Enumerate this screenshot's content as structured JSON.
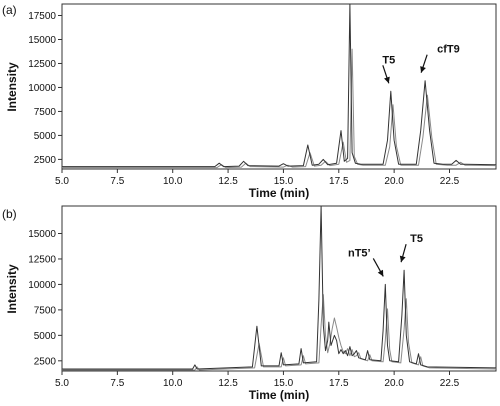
{
  "chart_data": [
    {
      "type": "line",
      "panel_label": "(a)",
      "xlabel": "Time (min)",
      "ylabel": "Intensity",
      "xlim": [
        5.0,
        24.6
      ],
      "ylim": [
        1500,
        18700
      ],
      "xticks": [
        5.0,
        7.5,
        10.0,
        12.5,
        15.0,
        17.5,
        20.0,
        22.5
      ],
      "xtick_labels": [
        "5.0",
        "7.5",
        "10.0",
        "12.5",
        "15.0",
        "17.5",
        "20.0",
        "22.5"
      ],
      "yticks": [
        2500,
        5000,
        7500,
        10000,
        12500,
        15000,
        17500
      ],
      "ytick_labels": [
        "2500",
        "5000",
        "7500",
        "10000",
        "12500",
        "15000",
        "17500"
      ],
      "grid": false,
      "colors": {
        "trace_1": "#333333",
        "trace_2": "#8a8a8a"
      },
      "series": [
        {
          "x": [
            5.0,
            11.9,
            12.1,
            12.3,
            13.0,
            13.2,
            13.4,
            14.8,
            15.0,
            15.2,
            15.9,
            16.1,
            16.3,
            16.6,
            16.8,
            17.0,
            17.4,
            17.6,
            17.75,
            17.9,
            18.0,
            18.1,
            18.25,
            18.5,
            19.5,
            19.7,
            19.85,
            20.0,
            20.2,
            21.0,
            21.2,
            21.4,
            21.6,
            21.8,
            22.2,
            22.6,
            22.8,
            23.0,
            23.2,
            24.6
          ],
          "y": [
            1750,
            1750,
            2100,
            1750,
            1800,
            2300,
            1850,
            1800,
            2050,
            1800,
            1850,
            4000,
            1900,
            2000,
            2500,
            1950,
            2100,
            5500,
            2300,
            2600,
            18700,
            3200,
            2100,
            2000,
            2000,
            4500,
            9600,
            4500,
            2000,
            2000,
            5500,
            10700,
            5500,
            2100,
            2000,
            2000,
            2400,
            2000,
            2000,
            1950
          ]
        },
        {
          "x": [
            5.0,
            12.0,
            12.2,
            12.4,
            13.1,
            13.3,
            13.5,
            15.0,
            15.2,
            15.4,
            16.0,
            16.2,
            16.4,
            16.7,
            16.9,
            17.1,
            17.5,
            17.7,
            17.85,
            18.0,
            18.1,
            18.2,
            18.35,
            18.6,
            19.6,
            19.8,
            19.95,
            20.1,
            20.3,
            21.1,
            21.3,
            21.5,
            21.7,
            21.9,
            22.4,
            22.8,
            23.0,
            23.2,
            23.4,
            24.6
          ],
          "y": [
            1650,
            1650,
            1950,
            1650,
            1700,
            2100,
            1750,
            1700,
            1900,
            1700,
            1750,
            3200,
            1800,
            1900,
            2300,
            1850,
            2000,
            4300,
            2200,
            2400,
            14000,
            2800,
            2000,
            1900,
            1900,
            3800,
            8200,
            3900,
            1900,
            1900,
            4800,
            9200,
            4800,
            2000,
            1900,
            1900,
            2200,
            1900,
            1900,
            1850
          ]
        }
      ],
      "annotations": [
        {
          "text": "T5",
          "x": 19.85,
          "y": 9600
        },
        {
          "text": "cfT9",
          "x": 21.4,
          "y": 10700
        }
      ]
    },
    {
      "type": "line",
      "panel_label": "(b)",
      "xlabel": "Time (min)",
      "ylabel": "Intensity",
      "xlim": [
        5.0,
        24.6
      ],
      "ylim": [
        1500,
        17700
      ],
      "xticks": [
        5.0,
        7.5,
        10.0,
        12.5,
        15.0,
        17.5,
        20.0,
        22.5
      ],
      "xtick_labels": [
        "5.0",
        "7.5",
        "10.0",
        "12.5",
        "15.0",
        "17.5",
        "20.0",
        "22.5"
      ],
      "yticks": [
        2500,
        5000,
        7500,
        10000,
        12500,
        15000
      ],
      "ytick_labels": [
        "2500",
        "5000",
        "7500",
        "10000",
        "12500",
        "15000"
      ],
      "grid": false,
      "colors": {
        "trace_1": "#333333",
        "trace_2": "#8a8a8a"
      },
      "series": [
        {
          "x": [
            5.0,
            10.9,
            11.0,
            11.1,
            13.6,
            13.8,
            14.0,
            14.8,
            14.9,
            15.0,
            15.7,
            15.8,
            15.9,
            16.5,
            16.6,
            16.7,
            16.8,
            16.9,
            17.0,
            17.05,
            17.15,
            17.3,
            17.4,
            17.5,
            17.6,
            17.7,
            17.8,
            17.9,
            18.0,
            18.1,
            18.2,
            18.3,
            18.4,
            18.7,
            18.8,
            18.9,
            19.4,
            19.5,
            19.6,
            19.7,
            19.8,
            20.2,
            20.35,
            20.45,
            20.55,
            20.7,
            21.0,
            21.1,
            21.2,
            21.5,
            24.6
          ],
          "y": [
            1700,
            1700,
            2100,
            1700,
            1900,
            5900,
            2000,
            2000,
            3300,
            2100,
            2200,
            3700,
            2300,
            2400,
            8500,
            17700,
            6000,
            3500,
            4500,
            6300,
            4000,
            5000,
            4500,
            3200,
            3600,
            3200,
            3500,
            3000,
            3900,
            3000,
            3200,
            3500,
            2800,
            2600,
            3500,
            2600,
            2500,
            5500,
            10000,
            4000,
            2500,
            2400,
            7000,
            11400,
            5000,
            2400,
            2200,
            3200,
            2100,
            1900,
            1800
          ]
        },
        {
          "x": [
            5.0,
            11.0,
            11.1,
            11.2,
            13.7,
            13.9,
            14.1,
            14.9,
            15.0,
            15.1,
            15.8,
            15.9,
            16.0,
            16.6,
            16.7,
            16.8,
            16.9,
            17.0,
            17.1,
            17.2,
            17.3,
            17.4,
            17.5,
            17.6,
            17.7,
            17.8,
            17.9,
            18.0,
            18.1,
            18.2,
            18.3,
            18.4,
            18.5,
            18.8,
            18.9,
            19.0,
            19.5,
            19.6,
            19.7,
            19.8,
            19.9,
            20.3,
            20.45,
            20.55,
            20.65,
            20.8,
            21.1,
            21.2,
            21.3,
            21.6,
            24.6
          ],
          "y": [
            1600,
            1600,
            1900,
            1600,
            1800,
            4200,
            1900,
            1900,
            2800,
            2000,
            2100,
            3000,
            2200,
            2300,
            6000,
            9000,
            5000,
            3300,
            4200,
            5600,
            6700,
            5800,
            4800,
            4000,
            3400,
            3200,
            3700,
            3000,
            3600,
            2900,
            3000,
            3300,
            2700,
            2500,
            3100,
            2500,
            2400,
            4500,
            7600,
            3600,
            2400,
            2300,
            5600,
            8600,
            4300,
            2300,
            2100,
            2900,
            2000,
            1800,
            1700
          ]
        }
      ],
      "annotations": [
        {
          "text": "nT5’",
          "x": 19.6,
          "y": 10000
        },
        {
          "text": "T5",
          "x": 20.45,
          "y": 11400
        }
      ]
    }
  ]
}
